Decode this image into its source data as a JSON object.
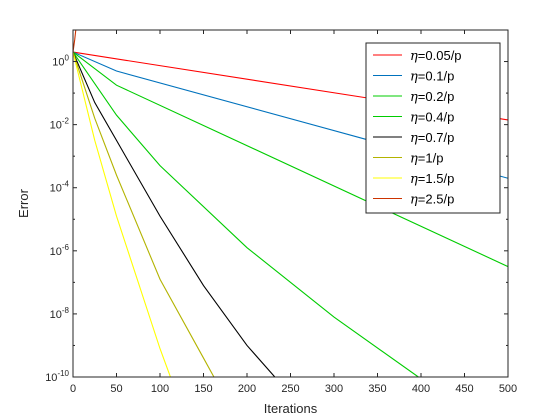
{
  "chart_data": {
    "type": "line",
    "title": "",
    "xlabel": "Iterations",
    "ylabel": "Error",
    "xlim": [
      0,
      500
    ],
    "ylim_log10": [
      -10,
      1
    ],
    "yscale": "log",
    "grid": false,
    "legend_position": "top-right",
    "x_ticks": [
      {
        "value": 0,
        "label": "0"
      },
      {
        "value": 50,
        "label": "50"
      },
      {
        "value": 100,
        "label": "100"
      },
      {
        "value": 150,
        "label": "150"
      },
      {
        "value": 200,
        "label": "200"
      },
      {
        "value": 250,
        "label": "250"
      },
      {
        "value": 300,
        "label": "300"
      },
      {
        "value": 350,
        "label": "350"
      },
      {
        "value": 400,
        "label": "400"
      },
      {
        "value": 450,
        "label": "450"
      },
      {
        "value": 500,
        "label": "500"
      }
    ],
    "y_ticks": [
      {
        "exp": 0,
        "base": "10",
        "sup": "0"
      },
      {
        "exp": -2,
        "base": "10",
        "sup": "-2"
      },
      {
        "exp": -4,
        "base": "10",
        "sup": "-4"
      },
      {
        "exp": -6,
        "base": "10",
        "sup": "-6"
      },
      {
        "exp": -8,
        "base": "10",
        "sup": "-8"
      },
      {
        "exp": -10,
        "base": "10",
        "sup": "-10"
      }
    ],
    "series": [
      {
        "name": "=0.05/p",
        "color": "#ff0000",
        "x": [
          0,
          500
        ],
        "log10_y": [
          0.3,
          -1.85
        ]
      },
      {
        "name": "=0.1/p",
        "color": "#0072bd",
        "x": [
          0,
          50,
          500
        ],
        "log10_y": [
          0.3,
          -0.3,
          -3.7
        ]
      },
      {
        "name": "=0.2/p",
        "color": "#00cc00",
        "x": [
          0,
          50,
          500
        ],
        "log10_y": [
          0.3,
          -0.75,
          -6.5
        ]
      },
      {
        "name": "=0.4/p",
        "color": "#00cc00",
        "x": [
          0,
          50,
          100,
          200,
          300,
          397
        ],
        "log10_y": [
          0.3,
          -1.7,
          -3.3,
          -5.9,
          -8.1,
          -10
        ]
      },
      {
        "name": "=0.7/p",
        "color": "#000000",
        "x": [
          0,
          25,
          50,
          100,
          150,
          200,
          232
        ],
        "log10_y": [
          0.3,
          -1.3,
          -2.5,
          -4.9,
          -7.1,
          -9.0,
          -10
        ]
      },
      {
        "name": "=1/p",
        "color": "#b3b300",
        "x": [
          0,
          25,
          50,
          100,
          150,
          162
        ],
        "log10_y": [
          0.3,
          -1.8,
          -3.6,
          -6.9,
          -9.4,
          -10
        ]
      },
      {
        "name": "=1.5/p",
        "color": "#ffff00",
        "x": [
          0,
          25,
          50,
          100,
          112
        ],
        "log10_y": [
          0.3,
          -2.5,
          -4.9,
          -9.1,
          -10
        ]
      },
      {
        "name": "=2.5/p",
        "color": "#cc3300",
        "x": [
          0,
          2,
          4
        ],
        "log10_y": [
          0.3,
          0.7,
          1.2
        ]
      }
    ],
    "legend_prefix": "η",
    "legend_labels": [
      "=0.05/p",
      "=0.1/p",
      "=0.2/p",
      "=0.4/p",
      "=0.7/p",
      "=1/p",
      "=1.5/p",
      "=2.5/p"
    ]
  }
}
